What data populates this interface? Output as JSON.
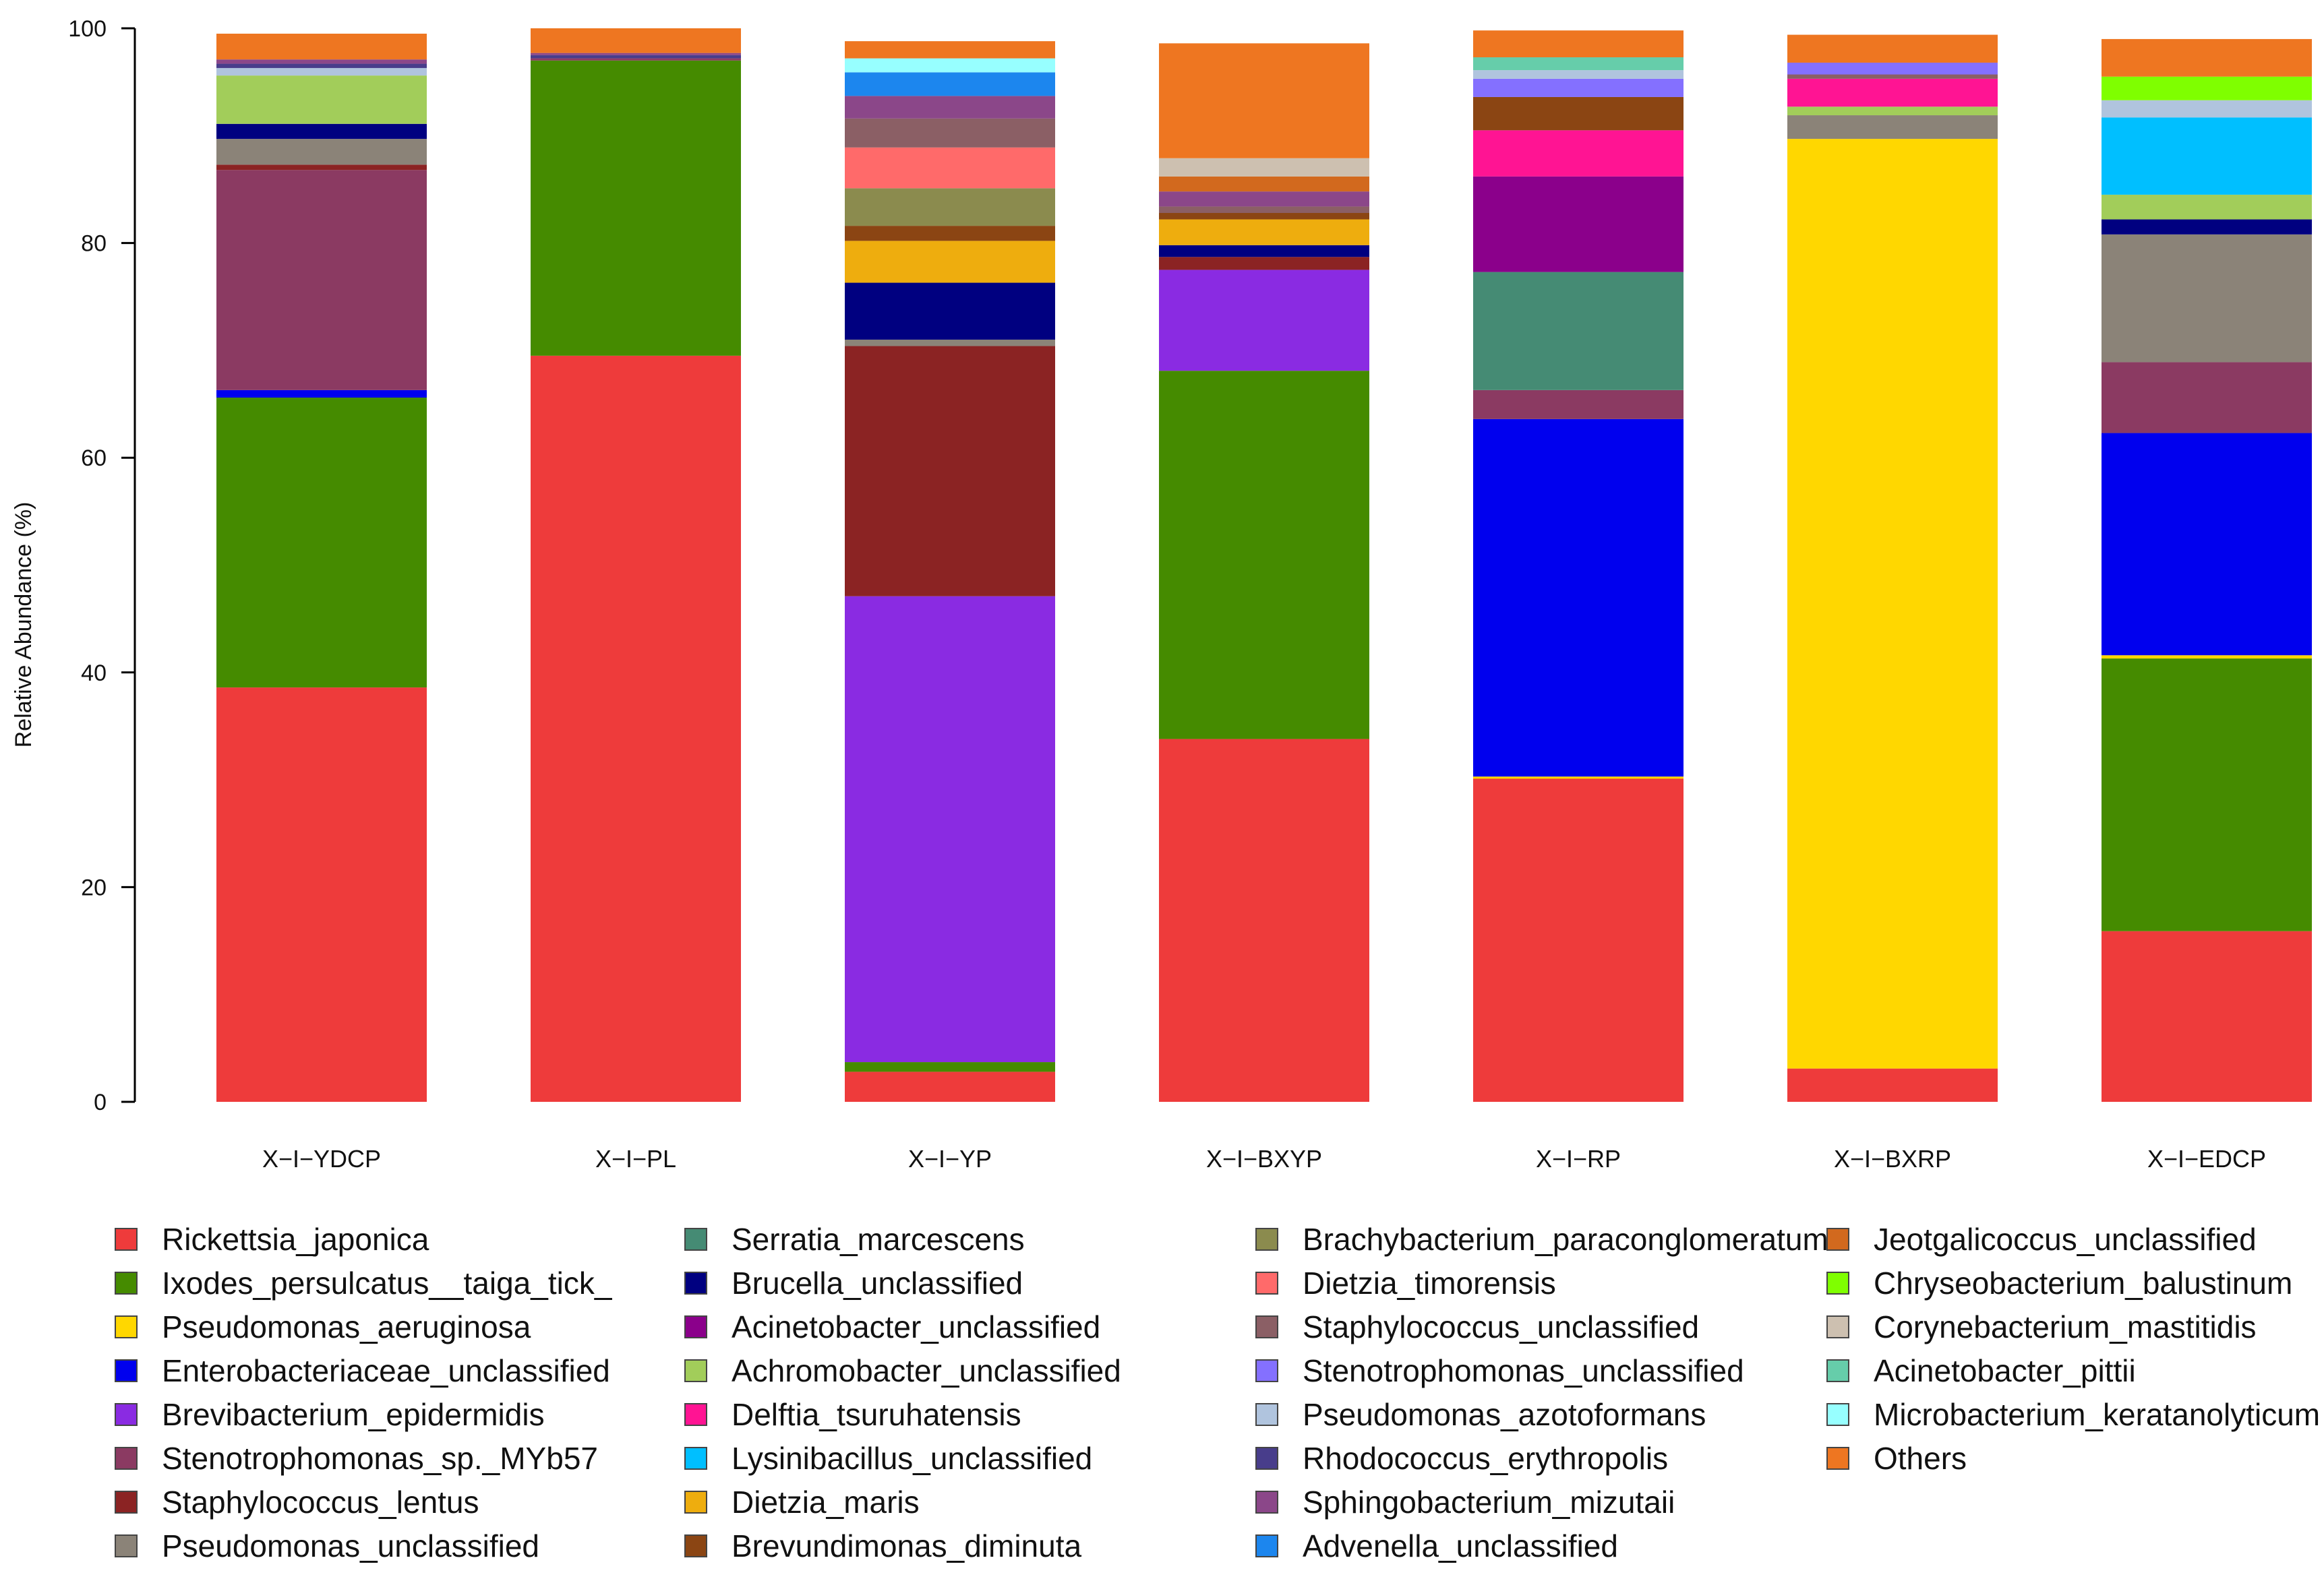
{
  "chart_data": {
    "type": "bar",
    "stacked": true,
    "ylabel": "Relative Abundance (%)",
    "xlabel": "",
    "ylim": [
      0,
      100
    ],
    "yticks": [
      0,
      20,
      40,
      60,
      80,
      100
    ],
    "grid": false,
    "legend_position": "bottom",
    "categories": [
      "X−I−YDCP",
      "X−I−PL",
      "X−I−YP",
      "X−I−BXYP",
      "X−I−RP",
      "X−I−BXRP",
      "X−I−EDCP"
    ],
    "series": [
      {
        "name": "Rickettsia_japonica",
        "color": "#EE3B3B",
        "values": [
          38.6,
          69.5,
          2.8,
          33.8,
          30.1,
          3.1,
          15.9
        ]
      },
      {
        "name": "Ixodes_persulcatus__taiga_tick_",
        "color": "#458B00",
        "values": [
          27.0,
          27.5,
          0.9,
          34.3,
          0.0,
          0.0,
          25.4
        ]
      },
      {
        "name": "Pseudomonas_aeruginosa",
        "color": "#FFD700",
        "values": [
          0.0,
          0.0,
          0.0,
          0.0,
          0.2,
          86.6,
          0.3
        ]
      },
      {
        "name": "Enterobacteriaceae_unclassified",
        "color": "#0000EE",
        "values": [
          0.7,
          0.0,
          0.0,
          0.0,
          33.3,
          0.0,
          20.7
        ]
      },
      {
        "name": "Brevibacterium_epidermidis",
        "color": "#8A2BE2",
        "values": [
          0.0,
          0.0,
          43.4,
          9.4,
          0.0,
          0.0,
          0.0
        ]
      },
      {
        "name": "Stenotrophomonas_sp._MYb57",
        "color": "#8B3A62",
        "values": [
          20.5,
          0.2,
          0.0,
          0.0,
          2.7,
          0.0,
          6.6
        ]
      },
      {
        "name": "Staphylococcus_lentus",
        "color": "#8B2323",
        "values": [
          0.5,
          0.0,
          23.3,
          1.2,
          0.0,
          0.0,
          0.0
        ]
      },
      {
        "name": "Pseudomonas_unclassified",
        "color": "#8B8378",
        "values": [
          2.4,
          0.0,
          0.6,
          0.0,
          0.0,
          2.2,
          11.9
        ]
      },
      {
        "name": "Serratia_marcescens",
        "color": "#458B74",
        "values": [
          0.0,
          0.0,
          0.0,
          0.0,
          11.0,
          0.0,
          0.0
        ]
      },
      {
        "name": "Brucella_unclassified",
        "color": "#000080",
        "values": [
          1.4,
          0.0,
          5.3,
          1.1,
          0.0,
          0.0,
          1.4
        ]
      },
      {
        "name": "Acinetobacter_unclassified",
        "color": "#8B008B",
        "values": [
          0.0,
          0.0,
          0.0,
          0.0,
          8.9,
          0.0,
          0.0
        ]
      },
      {
        "name": "Achromobacter_unclassified",
        "color": "#A2CD5A",
        "values": [
          4.5,
          0.0,
          0.0,
          0.0,
          0.0,
          0.8,
          2.3
        ]
      },
      {
        "name": "Delftia_tsuruhatensis",
        "color": "#FF1493",
        "values": [
          0.0,
          0.0,
          0.0,
          0.0,
          4.3,
          2.6,
          0.0
        ]
      },
      {
        "name": "Lysinibacillus_unclassified",
        "color": "#00BFFF",
        "values": [
          0.0,
          0.0,
          0.0,
          0.0,
          0.0,
          0.0,
          7.2
        ]
      },
      {
        "name": "Dietzia_maris",
        "color": "#EEAD0E",
        "values": [
          0.0,
          0.0,
          3.9,
          2.4,
          0.0,
          0.0,
          0.0
        ]
      },
      {
        "name": "Brevundimonas_diminuta",
        "color": "#8B4513",
        "values": [
          0.0,
          0.0,
          1.4,
          0.6,
          3.1,
          0.0,
          0.0
        ]
      },
      {
        "name": "Brachybacterium_paraconglomeratum",
        "color": "#8B8B4E",
        "values": [
          0.0,
          0.0,
          3.5,
          0.0,
          0.0,
          0.0,
          0.0
        ]
      },
      {
        "name": "Dietzia_timorensis",
        "color": "#FF6A6A",
        "values": [
          0.0,
          0.0,
          3.8,
          0.0,
          0.0,
          0.0,
          0.0
        ]
      },
      {
        "name": "Staphylococcus_unclassified",
        "color": "#8B5F65",
        "values": [
          0.0,
          0.0,
          2.7,
          0.6,
          0.0,
          0.4,
          0.0
        ]
      },
      {
        "name": "Stenotrophomonas_unclassified",
        "color": "#8470FF",
        "values": [
          0.0,
          0.0,
          0.0,
          0.0,
          1.7,
          1.1,
          0.0
        ]
      },
      {
        "name": "Pseudomonas_azotoformans",
        "color": "#B0C4DE",
        "values": [
          0.7,
          0.0,
          0.0,
          0.0,
          0.8,
          0.0,
          1.6
        ]
      },
      {
        "name": "Rhodococcus_erythropolis",
        "color": "#483D8B",
        "values": [
          0.4,
          0.3,
          0.0,
          0.0,
          0.0,
          0.0,
          0.0
        ]
      },
      {
        "name": "Sphingobacterium_mizutaii",
        "color": "#8B4789",
        "values": [
          0.4,
          0.2,
          2.1,
          1.4,
          0.0,
          0.0,
          0.0
        ]
      },
      {
        "name": "Advenella_unclassified",
        "color": "#1C86EE",
        "values": [
          0.0,
          0.0,
          2.2,
          0.0,
          0.0,
          0.0,
          0.0
        ]
      },
      {
        "name": "Jeotgalicoccus_unclassified",
        "color": "#D2691E",
        "values": [
          0.0,
          0.0,
          0.0,
          1.4,
          0.0,
          0.0,
          0.0
        ]
      },
      {
        "name": "Chryseobacterium_balustinum",
        "color": "#7FFF00",
        "values": [
          0.0,
          0.0,
          0.0,
          0.0,
          0.0,
          0.0,
          2.2
        ]
      },
      {
        "name": "Corynebacterium_mastitidis",
        "color": "#CDC0B0",
        "values": [
          0.0,
          0.0,
          0.0,
          1.7,
          0.0,
          0.0,
          0.0
        ]
      },
      {
        "name": "Acinetobacter_pittii",
        "color": "#66CDAA",
        "values": [
          0.0,
          0.0,
          0.0,
          0.0,
          1.2,
          0.0,
          0.0
        ]
      },
      {
        "name": "Microbacterium_keratanolyticum",
        "color": "#97FFFF",
        "values": [
          0.0,
          0.0,
          1.3,
          0.0,
          0.0,
          0.0,
          0.0
        ]
      },
      {
        "name": "Others",
        "color": "#EE7621",
        "values": [
          2.4,
          2.3,
          1.6,
          10.7,
          2.5,
          2.6,
          3.5
        ]
      }
    ]
  }
}
